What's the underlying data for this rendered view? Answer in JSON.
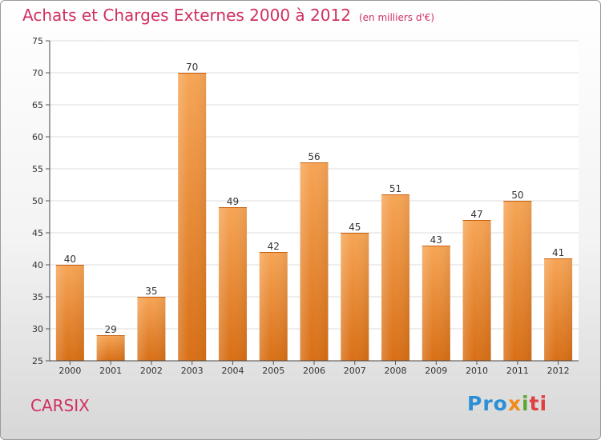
{
  "title": "Achats et Charges Externes 2000 à 2012",
  "subtitle": "(en milliers d'€)",
  "entity": "CARSIX",
  "logo": {
    "parts": [
      "Pro",
      "x",
      "i",
      "ti"
    ]
  },
  "colors": {
    "title": "#d03060",
    "bar_top": "#f6a556",
    "bar_bottom": "#d86f16"
  },
  "chart_data": {
    "type": "bar",
    "categories": [
      "2000",
      "2001",
      "2002",
      "2003",
      "2004",
      "2005",
      "2006",
      "2007",
      "2008",
      "2009",
      "2010",
      "2011",
      "2012"
    ],
    "values": [
      40,
      29,
      35,
      70,
      49,
      42,
      56,
      45,
      51,
      43,
      47,
      50,
      41
    ],
    "ylim": [
      25,
      75
    ],
    "yticks": [
      25,
      30,
      35,
      40,
      45,
      50,
      55,
      60,
      65,
      70,
      75
    ],
    "grid": true,
    "data_labels": true
  }
}
